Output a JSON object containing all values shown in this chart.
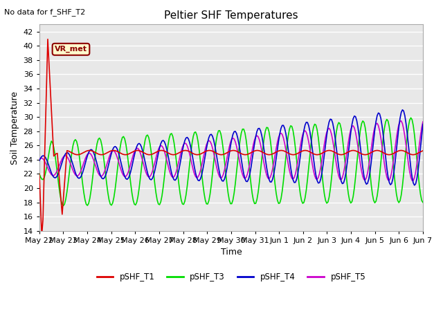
{
  "title": "Peltier SHF Temperatures",
  "subtitle": "No data for f_SHF_T2",
  "xlabel": "Time",
  "ylabel": "Soil Temperature",
  "ylim": [
    14,
    43
  ],
  "yticks": [
    14,
    16,
    18,
    20,
    22,
    24,
    26,
    28,
    30,
    32,
    34,
    36,
    38,
    40,
    42
  ],
  "fig_bg_color": "#ffffff",
  "plot_bg_color": "#e8e8e8",
  "grid_color": "#ffffff",
  "annotation_text": "VR_met",
  "annotation_color": "#8b0000",
  "annotation_bg": "#fffacd",
  "series": {
    "pSHF_T1": {
      "color": "#dd0000",
      "linewidth": 1.2
    },
    "pSHF_T3": {
      "color": "#00dd00",
      "linewidth": 1.2
    },
    "pSHF_T4": {
      "color": "#0000cc",
      "linewidth": 1.2
    },
    "pSHF_T5": {
      "color": "#cc00cc",
      "linewidth": 1.2
    }
  },
  "x_tick_labels": [
    "May 22",
    "May 23",
    "May 24",
    "May 25",
    "May 26",
    "May 27",
    "May 28",
    "May 29",
    "May 30",
    "May 31",
    "Jun 1",
    "Jun 2",
    "Jun 3",
    "Jun 4",
    "Jun 5",
    "Jun 6",
    "Jun 7"
  ]
}
